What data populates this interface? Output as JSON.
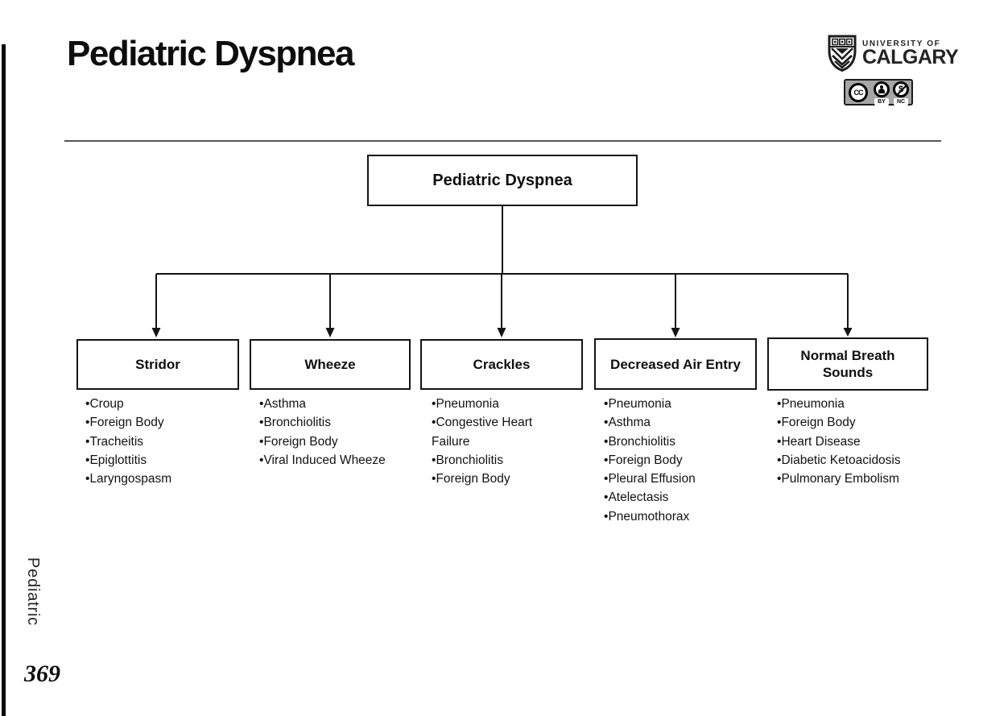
{
  "page": {
    "title": "Pediatric Dyspnea",
    "side_label": "Pediatric",
    "page_number": "369"
  },
  "branding": {
    "university_line1": "UNIVERSITY OF",
    "university_line2": "CALGARY",
    "crest_icon": "university-of-calgary-crest-icon",
    "license": {
      "cc_label": "CC",
      "by_label": "BY",
      "nc_label": "NC",
      "icons": [
        "cc-icon",
        "attribution-person-icon",
        "non-commercial-dollar-icon"
      ]
    }
  },
  "flowchart": {
    "root": {
      "label": "Pediatric Dyspnea"
    },
    "branches": [
      {
        "label": "Stridor",
        "items": [
          "Croup",
          "Foreign Body",
          "Tracheitis",
          "Epiglottitis",
          "Laryngospasm"
        ]
      },
      {
        "label": "Wheeze",
        "items": [
          "Asthma",
          "Bronchiolitis",
          "Foreign Body",
          "Viral Induced Wheeze"
        ]
      },
      {
        "label": "Crackles",
        "items": [
          "Pneumonia",
          "Congestive Heart Failure",
          "Bronchiolitis",
          "Foreign Body"
        ]
      },
      {
        "label": "Decreased Air Entry",
        "items": [
          "Pneumonia",
          "Asthma",
          "Bronchiolitis",
          "Foreign Body",
          "Pleural Effusion",
          "Atelectasis",
          "Pneumothorax"
        ]
      },
      {
        "label": "Normal Breath Sounds",
        "items": [
          "Pneumonia",
          "Foreign Body",
          "Heart Disease",
          "Diabetic Ketoacidosis",
          "Pulmonary Embolism"
        ]
      }
    ]
  },
  "colors": {
    "ink": "#111111",
    "header_rule_gray": "#565656",
    "license_badge_gray": "#a6a6a6",
    "background": "#ffffff"
  }
}
